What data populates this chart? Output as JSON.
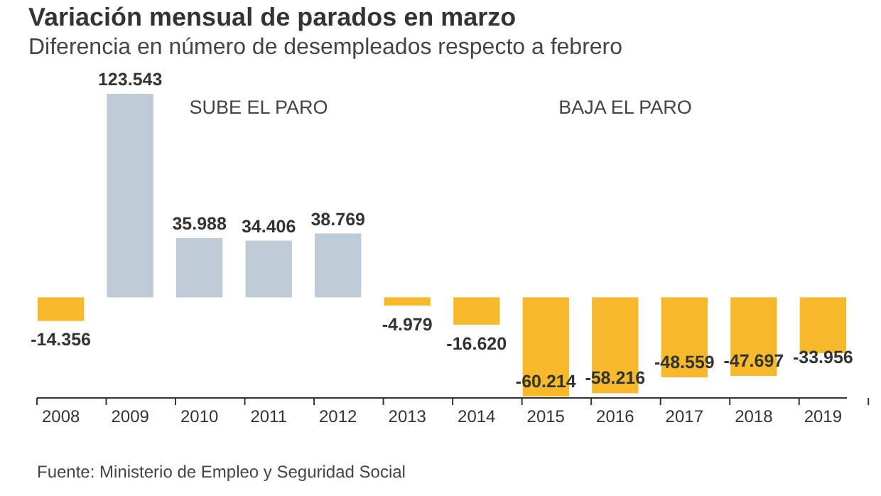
{
  "chart_data": {
    "type": "bar",
    "title": "Variación mensual de parados en marzo",
    "subtitle": "Diferencia en número de desempleados respecto a febrero",
    "categories": [
      "2008",
      "2009",
      "2010",
      "2011",
      "2012",
      "2013",
      "2014",
      "2015",
      "2016",
      "2017",
      "2018",
      "2019"
    ],
    "values": [
      -14356,
      123543,
      35988,
      34406,
      38769,
      -4979,
      -16620,
      -60214,
      -58216,
      -48559,
      -47697,
      -33956
    ],
    "colors": [
      "#f6b92b",
      "#bccbd6",
      "#bccbd6",
      "#bccbd6",
      "#bccbd6",
      "#f6b92b",
      "#f6b92b",
      "#f6b92b",
      "#f6b92b",
      "#f6b92b",
      "#f6b92b",
      "#f6b92b"
    ],
    "value_labels": [
      "-14.356",
      "123.543",
      "35.988",
      "34.406",
      "38.769",
      "-4.979",
      "-16.620",
      "-60.214",
      "-58.216",
      "-48.559",
      "-47.697",
      "-33.956"
    ],
    "annotations": [
      "SUBE EL PARO",
      "BAJA EL PARO",
      "Fuente: Ministerio de Empleo y Seguridad Social"
    ]
  }
}
